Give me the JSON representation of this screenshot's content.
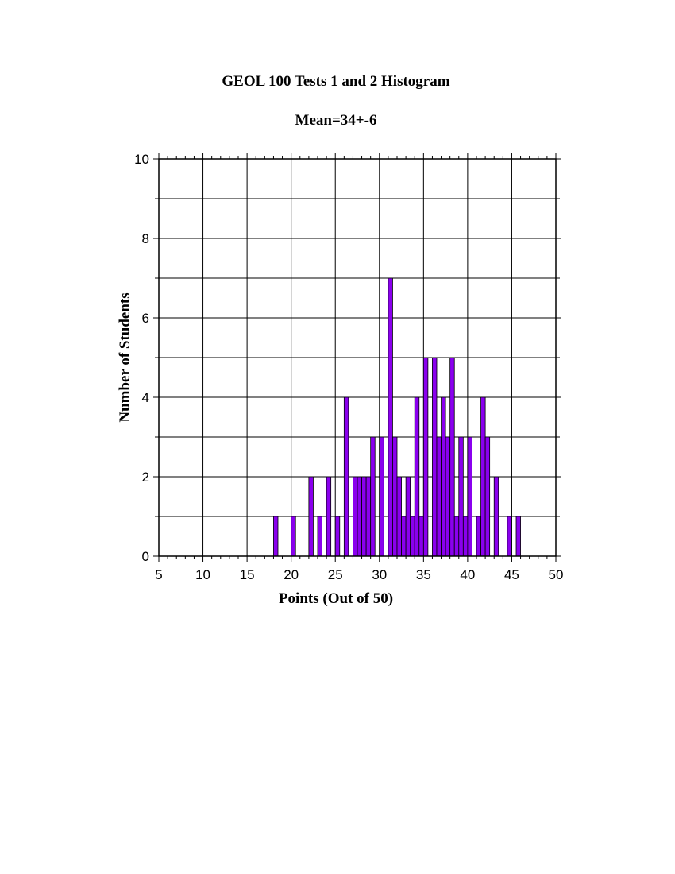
{
  "chart_data": {
    "type": "bar",
    "title": "GEOL 100 Tests 1 and 2 Histogram",
    "subtitle": "Mean=34+-6",
    "xlabel": "Points (Out of 50)",
    "ylabel": "Number of Students",
    "xlim": [
      5,
      50
    ],
    "ylim": [
      0,
      10
    ],
    "xticks": [
      "5",
      "10",
      "15",
      "20",
      "25",
      "30",
      "35",
      "40",
      "45",
      "50"
    ],
    "yticks": [
      "0",
      "2",
      "4",
      "6",
      "8",
      "10"
    ],
    "grid": true,
    "bin_width": 0.5,
    "bar_color": "#8a00ee",
    "x": [
      18,
      20,
      22,
      23,
      24,
      25,
      26,
      27,
      27.5,
      28,
      28.5,
      29,
      30,
      31,
      31.5,
      32,
      32.5,
      33,
      33.5,
      34,
      34.5,
      35,
      36,
      36.5,
      37,
      37.5,
      38,
      38.5,
      39,
      39.5,
      40,
      41,
      41.5,
      42,
      43,
      44.5,
      45.5
    ],
    "values": [
      1,
      1,
      2,
      1,
      2,
      1,
      4,
      2,
      2,
      2,
      2,
      3,
      3,
      7,
      3,
      2,
      1,
      2,
      1,
      4,
      1,
      5,
      5,
      3,
      4,
      3,
      5,
      1,
      3,
      1,
      3,
      1,
      4,
      3,
      2,
      1,
      1
    ]
  }
}
